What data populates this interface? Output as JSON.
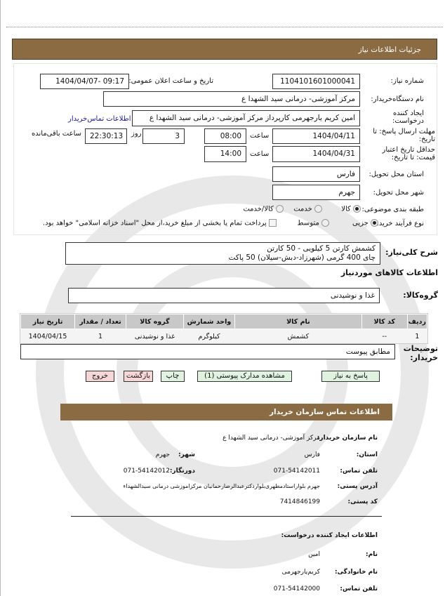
{
  "header": {
    "title": "جزئیات اطلاعات نیاز"
  },
  "form": {
    "need_number_label": "شماره نیاز:",
    "need_number": "1104101601000041",
    "announce_label": "تاریخ و ساعت اعلان عمومی:",
    "announce_value": "1404/04/07- 09:17",
    "buyer_org_label": "نام دستگاه‌خریدار:",
    "buyer_org": "مرکز آموزشی- درمانی سید الشهدا ع",
    "creator_label": "ایجاد کننده درخواست:",
    "creator": "امین کریم یارجهرمی کارپرداز مرکز آموزشی- درمانی سید الشهدا ع",
    "contact_link": "اطلاعات تماس‌خریدار",
    "deadline_label": "مهلت ارسال پاسخ: تا تاریخ:",
    "deadline_date": "1404/04/11",
    "time_label": "ساعت",
    "deadline_time": "08:00",
    "days": "3",
    "days_label": "روز",
    "remaining": "22:30:13",
    "remaining_label": "ساعت باقی‌مانده",
    "validity_label": "حداقل تاریخ اعتبار قیمت: تا تاریخ:",
    "validity_date": "1404/04/31",
    "validity_time": "14:00",
    "province_label": "استان محل تحویل:",
    "province": "فارس",
    "city_label": "شهر محل تحویل:",
    "city": "جهرم",
    "category_label": "طبقه بندی موضوعی:",
    "category_options": [
      "کالا",
      "خدمت",
      "کالا/خدمت"
    ],
    "category_selected": "کالا",
    "process_label": "نوع فرآیند خرید:",
    "process_options": [
      "جزیی",
      "متوسط"
    ],
    "process_selected": "جزیی",
    "payment_note": "پرداخت تمام یا بخشی از مبلغ خرید،از محل \"اسناد خزانه اسلامی\" خواهد بود."
  },
  "summary": {
    "label": "شرح کلی‌نیاز:",
    "line1": "کشمش کارتن 5 کیلویی - 50 کارتن",
    "line2": "چای 400 گرمی (شهرزاد-دبش-سیلان) 50 پاکت"
  },
  "goods": {
    "title": "اطلاعات کالاهای موردنیاز",
    "group_label": "گروه‌کالا:",
    "group": "غذا و نوشیدنی",
    "columns": [
      "ردیف",
      "کد کالا",
      "نام کالا",
      "واحد شمارش",
      "گروه کالا",
      "تعداد / مقدار",
      "تاریخ نیاز"
    ],
    "rows": [
      [
        "1",
        "--",
        "کشمش",
        "کیلوگرم",
        "غذا و نوشیدنی",
        "1",
        "1404/04/15"
      ]
    ]
  },
  "notes": {
    "label": "توضیحات خریدار:",
    "value": "مطابق پیوست"
  },
  "buttons": {
    "reply": "پاسخ به نیاز",
    "attachments": "مشاهده مدارک پیوستی (1)",
    "print": "چاپ",
    "back": "بازگشت",
    "exit": "خروج"
  },
  "contact": {
    "title": "اطلاعات تماس سازمان خریدار",
    "org_label": "نام سازمان خریدار:",
    "org": "مرکز آموزشی- درمانی سید الشهدا ع",
    "province_label": "استان:",
    "province": "فارس",
    "city_label": "شهر:",
    "city": "جهرم",
    "phone_label": "تلفن تماس:",
    "phone": "071-54142011",
    "fax_label": "دورنگار:",
    "fax": "071-54142012",
    "address_label": "آدرس پستی:",
    "address": "جهرم بلواراستادمطهری‌بلواردکترعبدالرضارحمانیان مرکزاموزشی درمانی سیدالشهداء",
    "postal_label": "کد پستی:",
    "postal": "7414846199",
    "creator_title": "اطلاعات ایجاد کننده درخواست:",
    "name_label": "نام:",
    "name": "امین",
    "family_label": "نام خانوادگی:",
    "family": "کریم‌یارجهرمی",
    "creator_phone_label": "تلفن تماس:",
    "creator_phone": "071-54142000"
  },
  "colors": {
    "brand": "#8B6C42",
    "link": "#1a1aa6",
    "button_green": "#dff3df",
    "button_pink": "#f7d6d6"
  }
}
